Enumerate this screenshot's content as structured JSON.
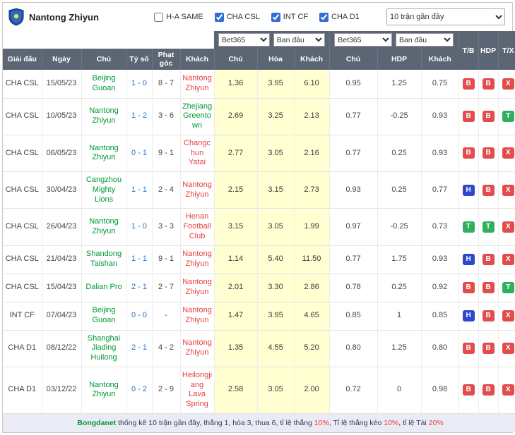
{
  "colors": {
    "accent": "#2f6fd6",
    "header_bg": "#5b6573",
    "odds_bg": "#ffffd2",
    "team_green": "#009933",
    "team_red": "#e83e3e",
    "score_blue": "#2277cc",
    "badge_red": "#e24c4c",
    "badge_green": "#2eb05c",
    "badge_blue": "#2f46d0",
    "footer_bg": "#ebebf5"
  },
  "header": {
    "title": "Nantong Zhiyun",
    "checkboxes": [
      {
        "label": "H-A SAME",
        "checked": false
      },
      {
        "label": "CHA CSL",
        "checked": true
      },
      {
        "label": "INT CF",
        "checked": true
      },
      {
        "label": "CHA D1",
        "checked": true
      }
    ],
    "range_select": "10 trận gần đây"
  },
  "controls": {
    "selects": [
      "Bet365",
      "Ban đầu",
      "Bet365",
      "Ban đầu"
    ]
  },
  "table": {
    "badge_headers": [
      "T/B",
      "HDP",
      "T/X"
    ],
    "header_row2": [
      "Giải đấu",
      "Ngày",
      "Chủ",
      "Tỷ số",
      "Phạt góc",
      "Khách",
      "Chủ",
      "Hòa",
      "Khách",
      "Chủ",
      "HDP",
      "Khách"
    ],
    "rows": [
      {
        "league": "CHA CSL",
        "date": "15/05/23",
        "home": "Beijing Guoan",
        "home_color": "green",
        "score": "1 - 0",
        "corner": "8 - 7",
        "away": "Nantong Zhiyun",
        "away_color": "red",
        "odds": [
          "1.36",
          "3.95",
          "6.10"
        ],
        "handicap": [
          "0.95",
          "1.25",
          "0.75"
        ],
        "badges": [
          {
            "label": "B",
            "color": "red"
          },
          {
            "label": "B",
            "color": "red"
          },
          {
            "label": "X",
            "color": "red"
          }
        ]
      },
      {
        "league": "CHA CSL",
        "date": "10/05/23",
        "home": "Nantong Zhiyun",
        "home_color": "green",
        "score": "1 - 2",
        "corner": "3 - 6",
        "away": "Zhejiang Greentown",
        "away_color": "green",
        "odds": [
          "2.69",
          "3.25",
          "2.13"
        ],
        "handicap": [
          "0.77",
          "-0.25",
          "0.93"
        ],
        "badges": [
          {
            "label": "B",
            "color": "red"
          },
          {
            "label": "B",
            "color": "red"
          },
          {
            "label": "T",
            "color": "green"
          }
        ]
      },
      {
        "league": "CHA CSL",
        "date": "06/05/23",
        "home": "Nantong Zhiyun",
        "home_color": "green",
        "score": "0 - 1",
        "corner": "9 - 1",
        "away": "Changchun Yatai",
        "away_color": "red",
        "odds": [
          "2.77",
          "3.05",
          "2.16"
        ],
        "handicap": [
          "0.77",
          "0.25",
          "0.93"
        ],
        "badges": [
          {
            "label": "B",
            "color": "red"
          },
          {
            "label": "B",
            "color": "red"
          },
          {
            "label": "X",
            "color": "red"
          }
        ]
      },
      {
        "league": "CHA CSL",
        "date": "30/04/23",
        "home": "Cangzhou Mighty Lions",
        "home_color": "green",
        "score": "1 - 1",
        "corner": "2 - 4",
        "away": "Nantong Zhiyun",
        "away_color": "red",
        "odds": [
          "2.15",
          "3.15",
          "2.73"
        ],
        "handicap": [
          "0.93",
          "0.25",
          "0.77"
        ],
        "badges": [
          {
            "label": "H",
            "color": "blue"
          },
          {
            "label": "B",
            "color": "red"
          },
          {
            "label": "X",
            "color": "red"
          }
        ]
      },
      {
        "league": "CHA CSL",
        "date": "26/04/23",
        "home": "Nantong Zhiyun",
        "home_color": "green",
        "score": "1 - 0",
        "corner": "3 - 3",
        "away": "Henan Football Club",
        "away_color": "red",
        "odds": [
          "3.15",
          "3.05",
          "1.99"
        ],
        "handicap": [
          "0.97",
          "-0.25",
          "0.73"
        ],
        "badges": [
          {
            "label": "T",
            "color": "green"
          },
          {
            "label": "T",
            "color": "green"
          },
          {
            "label": "X",
            "color": "red"
          }
        ]
      },
      {
        "league": "CHA CSL",
        "date": "21/04/23",
        "home": "Shandong Taishan",
        "home_color": "green",
        "score": "1 - 1",
        "corner": "9 - 1",
        "away": "Nantong Zhiyun",
        "away_color": "red",
        "odds": [
          "1.14",
          "5.40",
          "11.50"
        ],
        "handicap": [
          "0.77",
          "1.75",
          "0.93"
        ],
        "badges": [
          {
            "label": "H",
            "color": "blue"
          },
          {
            "label": "B",
            "color": "red"
          },
          {
            "label": "X",
            "color": "red"
          }
        ]
      },
      {
        "league": "CHA CSL",
        "date": "15/04/23",
        "home": "Dalian Pro",
        "home_color": "green",
        "score": "2 - 1",
        "corner": "2 - 7",
        "away": "Nantong Zhiyun",
        "away_color": "red",
        "odds": [
          "2.01",
          "3.30",
          "2.86"
        ],
        "handicap": [
          "0.78",
          "0.25",
          "0.92"
        ],
        "badges": [
          {
            "label": "B",
            "color": "red"
          },
          {
            "label": "B",
            "color": "red"
          },
          {
            "label": "T",
            "color": "green"
          }
        ]
      },
      {
        "league": "INT CF",
        "date": "07/04/23",
        "home": "Beijing Guoan",
        "home_color": "green",
        "score": "0 - 0",
        "corner": "-",
        "away": "Nantong Zhiyun",
        "away_color": "red",
        "odds": [
          "1.47",
          "3.95",
          "4.65"
        ],
        "handicap": [
          "0.85",
          "1",
          "0.85"
        ],
        "badges": [
          {
            "label": "H",
            "color": "blue"
          },
          {
            "label": "B",
            "color": "red"
          },
          {
            "label": "X",
            "color": "red"
          }
        ]
      },
      {
        "league": "CHA D1",
        "date": "08/12/22",
        "home": "Shanghai Jiading Huilong",
        "home_color": "green",
        "score": "2 - 1",
        "corner": "4 - 2",
        "away": "Nantong Zhiyun",
        "away_color": "red",
        "odds": [
          "1.35",
          "4.55",
          "5.20"
        ],
        "handicap": [
          "0.80",
          "1.25",
          "0.80"
        ],
        "badges": [
          {
            "label": "B",
            "color": "red"
          },
          {
            "label": "B",
            "color": "red"
          },
          {
            "label": "X",
            "color": "red"
          }
        ]
      },
      {
        "league": "CHA D1",
        "date": "03/12/22",
        "home": "Nantong Zhiyun",
        "home_color": "green",
        "score": "0 - 2",
        "corner": "2 - 9",
        "away": "Heilongjiang Lava Spring",
        "away_color": "red",
        "odds": [
          "2.58",
          "3.05",
          "2.00"
        ],
        "handicap": [
          "0.72",
          "0",
          "0.98"
        ],
        "badges": [
          {
            "label": "B",
            "color": "red"
          },
          {
            "label": "B",
            "color": "red"
          },
          {
            "label": "X",
            "color": "red"
          }
        ]
      }
    ]
  },
  "footer": {
    "segments": [
      {
        "text": "Bongdanet",
        "style": "green"
      },
      {
        "text": " thống kê 10 trận gần đây, thắng 1, hòa 3, thua 6, tỉ lệ thắng ",
        "style": "normal"
      },
      {
        "text": "10%",
        "style": "red"
      },
      {
        "text": ", Tỉ lệ thắng kéo ",
        "style": "normal"
      },
      {
        "text": "10%",
        "style": "red"
      },
      {
        "text": ", tỉ lệ Tài ",
        "style": "normal"
      },
      {
        "text": "20%",
        "style": "red"
      }
    ]
  }
}
